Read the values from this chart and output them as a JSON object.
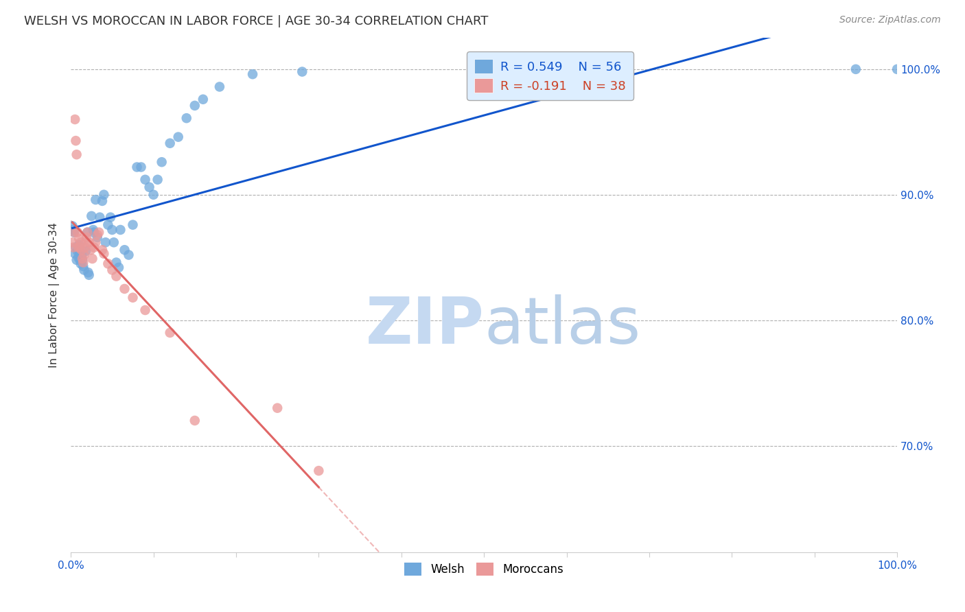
{
  "title": "WELSH VS MOROCCAN IN LABOR FORCE | AGE 30-34 CORRELATION CHART",
  "source": "Source: ZipAtlas.com",
  "ylabel": "In Labor Force | Age 30-34",
  "xlim": [
    0.0,
    1.0
  ],
  "ylim": [
    0.615,
    1.025
  ],
  "welsh_R": 0.549,
  "welsh_N": 56,
  "moroccan_R": -0.191,
  "moroccan_N": 38,
  "welsh_color": "#6fa8dc",
  "moroccan_color": "#ea9999",
  "trendline_welsh_color": "#1155cc",
  "trendline_moroccan_solid_color": "#e06666",
  "trendline_moroccan_dashed_color": "#ea9999",
  "background_color": "#ffffff",
  "grid_color": "#b0b0b0",
  "legend_box_facecolor": "#ddeeff",
  "legend_text_color_welsh": "#1155cc",
  "legend_text_color_moroccan": "#cc4125",
  "watermark_zip_color": "#c5d9f1",
  "watermark_atlas_color": "#b8cfe8",
  "welsh_x": [
    0.002,
    0.003,
    0.004,
    0.005,
    0.006,
    0.007,
    0.008,
    0.009,
    0.01,
    0.01,
    0.011,
    0.012,
    0.013,
    0.014,
    0.015,
    0.016,
    0.018,
    0.02,
    0.021,
    0.022,
    0.025,
    0.027,
    0.028,
    0.03,
    0.032,
    0.035,
    0.038,
    0.04,
    0.042,
    0.045,
    0.048,
    0.05,
    0.052,
    0.055,
    0.058,
    0.06,
    0.065,
    0.07,
    0.075,
    0.08,
    0.085,
    0.09,
    0.095,
    0.1,
    0.105,
    0.11,
    0.12,
    0.13,
    0.14,
    0.15,
    0.16,
    0.18,
    0.22,
    0.28,
    0.95,
    1.0
  ],
  "welsh_y": [
    0.875,
    0.872,
    0.87,
    0.853,
    0.858,
    0.848,
    0.855,
    0.85,
    0.86,
    0.855,
    0.848,
    0.845,
    0.852,
    0.848,
    0.843,
    0.84,
    0.855,
    0.87,
    0.838,
    0.836,
    0.883,
    0.872,
    0.87,
    0.896,
    0.866,
    0.882,
    0.895,
    0.9,
    0.862,
    0.876,
    0.882,
    0.872,
    0.862,
    0.846,
    0.842,
    0.872,
    0.856,
    0.852,
    0.876,
    0.922,
    0.922,
    0.912,
    0.906,
    0.9,
    0.912,
    0.926,
    0.941,
    0.946,
    0.961,
    0.971,
    0.976,
    0.986,
    0.996,
    0.998,
    1.0,
    1.0
  ],
  "moroccan_x": [
    0.002,
    0.003,
    0.004,
    0.005,
    0.006,
    0.007,
    0.008,
    0.009,
    0.01,
    0.011,
    0.012,
    0.013,
    0.014,
    0.015,
    0.016,
    0.017,
    0.018,
    0.019,
    0.02,
    0.022,
    0.024,
    0.026,
    0.028,
    0.03,
    0.032,
    0.034,
    0.038,
    0.04,
    0.045,
    0.05,
    0.055,
    0.065,
    0.075,
    0.09,
    0.12,
    0.15,
    0.25,
    0.3
  ],
  "moroccan_y": [
    0.862,
    0.858,
    0.87,
    0.96,
    0.943,
    0.932,
    0.87,
    0.858,
    0.865,
    0.858,
    0.862,
    0.856,
    0.849,
    0.846,
    0.852,
    0.858,
    0.862,
    0.866,
    0.87,
    0.862,
    0.856,
    0.849,
    0.858,
    0.862,
    0.868,
    0.87,
    0.856,
    0.853,
    0.845,
    0.84,
    0.835,
    0.825,
    0.818,
    0.808,
    0.79,
    0.72,
    0.73,
    0.68
  ]
}
